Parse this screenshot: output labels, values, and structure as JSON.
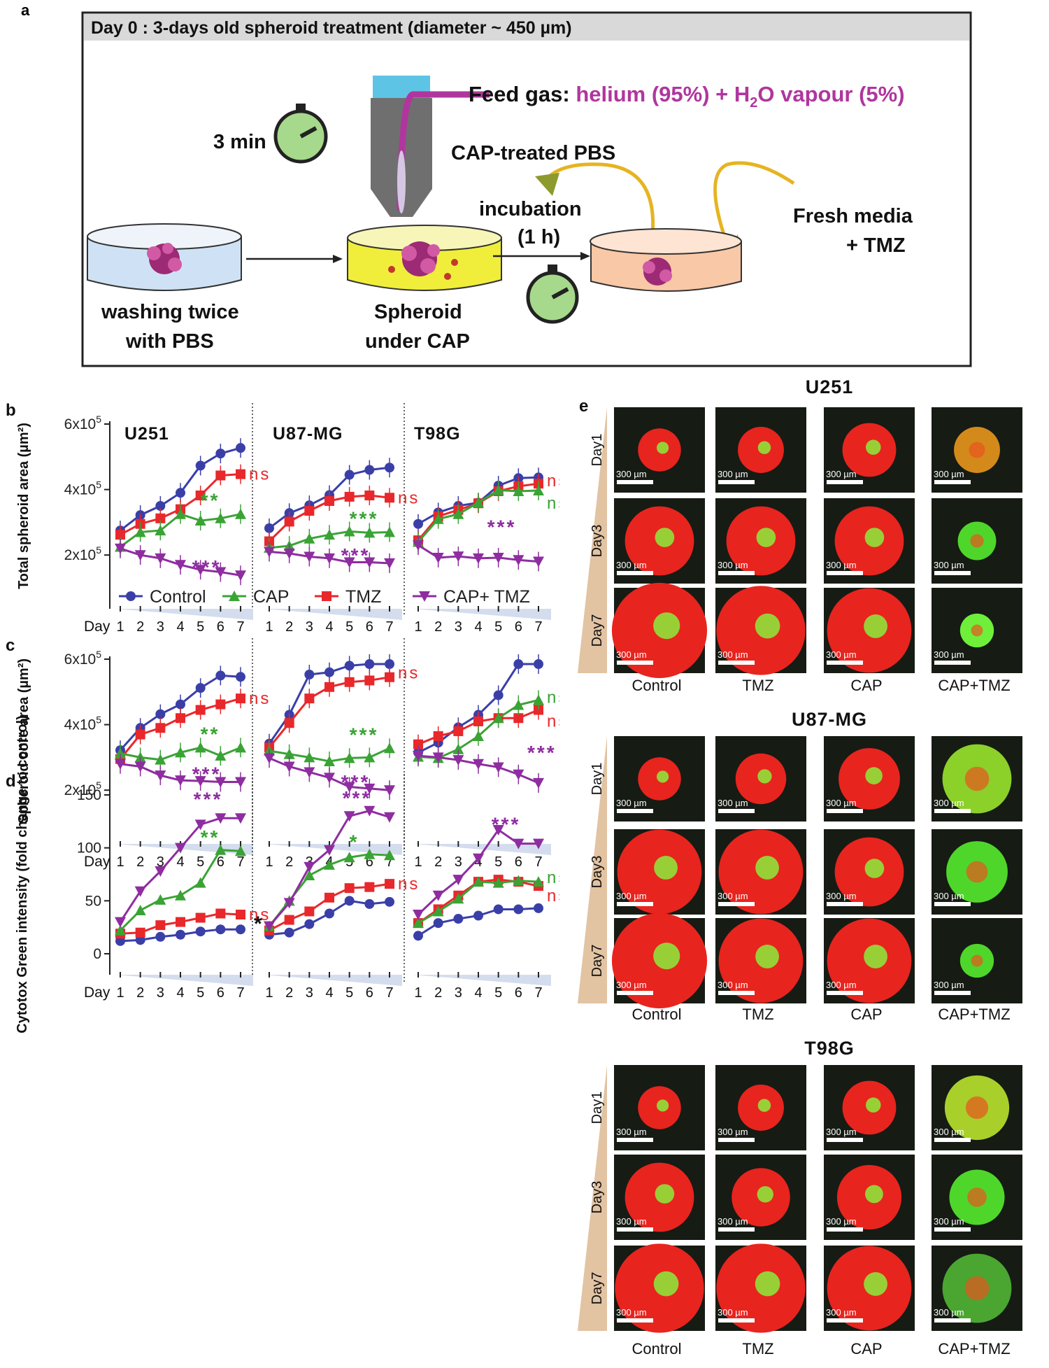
{
  "panel_a": {
    "letter": "a",
    "header": "Day 0 : 3-days old spheroid treatment (diameter ~ 450 µm)",
    "feed_gas_label": "Feed gas: ",
    "feed_gas_mix": "helium (95%) + H",
    "feed_gas_sub": "2",
    "feed_gas_tail": "O vapour (5%)",
    "timer_3min": "3 min",
    "cap_treated_pbs": "CAP-treated PBS",
    "incubation": "incubation",
    "incubation_time": "(1 h)",
    "fresh_media": "Fresh media",
    "plus_tmz": "+ TMZ",
    "washing_1": "washing twice",
    "washing_2": "with PBS",
    "spheroid_1": "Spheroid",
    "spheroid_2": "under CAP",
    "colors": {
      "gas": "#b0369e",
      "dish_wash": "#cfe2f5",
      "dish_cap": "#f0ee3a",
      "dish_inc": "#f9c8a6",
      "arrow": "#e6b422",
      "timer": "#a6d98c"
    }
  },
  "legend": {
    "items": [
      {
        "label": "Control",
        "color": "#3a3fa8",
        "marker": "circle"
      },
      {
        "label": "CAP",
        "color": "#3aa335",
        "marker": "triangle-up"
      },
      {
        "label": "TMZ",
        "color": "#e8282b",
        "marker": "square"
      },
      {
        "label": "CAP+ TMZ",
        "color": "#8e2da0",
        "marker": "triangle-down"
      }
    ]
  },
  "chart_data": [
    {
      "panel": "b",
      "type": "line",
      "ylabel": "Total spheroid area (µm²)",
      "ylim": [
        100000,
        600000
      ],
      "yticks": [
        "2x10⁵",
        "4x10⁵",
        "6x10⁵"
      ],
      "x": [
        1,
        2,
        3,
        4,
        5,
        6,
        7
      ],
      "xlabel": "Day",
      "subplots": [
        {
          "title": "U251",
          "series": [
            {
              "name": "Control",
              "values": [
                275000,
                322000,
                350000,
                390000,
                473000,
                510000,
                527000
              ]
            },
            {
              "name": "TMZ",
              "values": [
                262000,
                295000,
                312000,
                340000,
                382000,
                443000,
                447000
              ]
            },
            {
              "name": "CAP",
              "values": [
                225000,
                270000,
                275000,
                325000,
                305000,
                312000,
                325000
              ]
            },
            {
              "name": "CAP+ TMZ",
              "values": [
                220000,
                200000,
                190000,
                170000,
                155000,
                148000,
                138000
              ]
            }
          ],
          "annotations": [
            {
              "text": "ns",
              "series": "TMZ"
            },
            {
              "text": "**",
              "series": "CAP"
            },
            {
              "text": "***",
              "series": "CAP+ TMZ"
            }
          ]
        },
        {
          "title": "U87-MG",
          "series": [
            {
              "name": "Control",
              "values": [
                282000,
                328000,
                352000,
                383000,
                445000,
                460000,
                467000
              ]
            },
            {
              "name": "TMZ",
              "values": [
                242000,
                302000,
                335000,
                365000,
                378000,
                382000,
                375000
              ]
            },
            {
              "name": "CAP",
              "values": [
                222000,
                228000,
                250000,
                262000,
                272000,
                268000,
                270000
              ]
            },
            {
              "name": "CAP+ TMZ",
              "values": [
                210000,
                205000,
                195000,
                190000,
                178000,
                178000,
                175000
              ]
            }
          ],
          "annotations": [
            {
              "text": "ns",
              "series": "TMZ"
            },
            {
              "text": "***",
              "series": "CAP"
            },
            {
              "text": "***",
              "series": "CAP+ TMZ"
            }
          ]
        },
        {
          "title": "T98G",
          "series": [
            {
              "name": "Control",
              "values": [
                295000,
                330000,
                350000,
                360000,
                412000,
                435000,
                437000
              ]
            },
            {
              "name": "TMZ",
              "values": [
                245000,
                318000,
                338000,
                358000,
                395000,
                410000,
                418000
              ]
            },
            {
              "name": "CAP",
              "values": [
                240000,
                310000,
                325000,
                360000,
                398000,
                395000,
                397000
              ]
            },
            {
              "name": "CAP+ TMZ",
              "values": [
                230000,
                192000,
                196000,
                190000,
                192000,
                185000,
                180000
              ]
            }
          ],
          "annotations": [
            {
              "text": "ns",
              "series": "TMZ"
            },
            {
              "text": "ns",
              "series": "CAP"
            },
            {
              "text": "***",
              "series": "CAP+ TMZ"
            }
          ]
        }
      ]
    },
    {
      "panel": "c",
      "type": "line",
      "ylabel": "Spheroid core area (µm²)",
      "ylim": [
        100000,
        600000
      ],
      "yticks": [
        "2x10⁵",
        "4x10⁵",
        "6x10⁵"
      ],
      "x": [
        1,
        2,
        3,
        4,
        5,
        6,
        7
      ],
      "xlabel": "Day",
      "subplots": [
        {
          "title": "",
          "series": [
            {
              "name": "Control",
              "values": [
                322000,
                390000,
                432000,
                462000,
                512000,
                550000,
                546000
              ]
            },
            {
              "name": "TMZ",
              "values": [
                295000,
                370000,
                390000,
                420000,
                445000,
                462000,
                480000
              ]
            },
            {
              "name": "CAP",
              "values": [
                312000,
                300000,
                293000,
                315000,
                330000,
                305000,
                330000
              ]
            },
            {
              "name": "CAP+ TMZ",
              "values": [
                280000,
                272000,
                245000,
                230000,
                228000,
                225000,
                225000
              ]
            }
          ],
          "annotations": [
            {
              "text": "ns",
              "series": "TMZ"
            },
            {
              "text": "**",
              "series": "CAP"
            },
            {
              "text": "***",
              "series": "CAP+ TMZ"
            }
          ]
        },
        {
          "title": "",
          "series": [
            {
              "name": "Control",
              "values": [
                342000,
                430000,
                553000,
                560000,
                580000,
                585000,
                585000
              ]
            },
            {
              "name": "TMZ",
              "values": [
                330000,
                405000,
                480000,
                515000,
                530000,
                535000,
                545000
              ]
            },
            {
              "name": "CAP",
              "values": [
                320000,
                310000,
                300000,
                288000,
                298000,
                300000,
                328000
              ]
            },
            {
              "name": "CAP+ TMZ",
              "values": [
                298000,
                272000,
                255000,
                238000,
                210000,
                205000,
                200000
              ]
            }
          ],
          "annotations": [
            {
              "text": "ns",
              "series": "TMZ"
            },
            {
              "text": "***",
              "series": "CAP"
            },
            {
              "text": "***",
              "series": "CAP+ TMZ"
            }
          ]
        },
        {
          "title": "",
          "series": [
            {
              "name": "Control",
              "values": [
                315000,
                345000,
                392000,
                430000,
                490000,
                585000,
                585000
              ]
            },
            {
              "name": "TMZ",
              "values": [
                340000,
                365000,
                380000,
                410000,
                420000,
                420000,
                445000
              ]
            },
            {
              "name": "CAP",
              "values": [
                302000,
                298000,
                325000,
                365000,
                420000,
                460000,
                475000
              ]
            },
            {
              "name": "CAP+ TMZ",
              "values": [
                305000,
                300000,
                292000,
                280000,
                270000,
                248000,
                222000
              ]
            }
          ],
          "annotations": [
            {
              "text": "ns",
              "series": "CAP"
            },
            {
              "text": "ns",
              "series": "TMZ"
            },
            {
              "text": "***",
              "series": "CAP+ TMZ"
            }
          ]
        }
      ]
    },
    {
      "panel": "d",
      "type": "line",
      "ylabel": "Cytotox Green intensity (fold change to control)",
      "ylim": [
        0,
        150
      ],
      "yticks": [
        "0",
        "50",
        "100",
        "150"
      ],
      "x": [
        1,
        2,
        3,
        4,
        5,
        6,
        7
      ],
      "xlabel": "Day",
      "subplots": [
        {
          "title": "",
          "series": [
            {
              "name": "Control",
              "values": [
                12,
                13,
                16,
                18,
                21,
                23,
                23
              ]
            },
            {
              "name": "TMZ",
              "values": [
                19,
                20,
                27,
                30,
                34,
                38,
                37
              ]
            },
            {
              "name": "CAP",
              "values": [
                22,
                41,
                51,
                55,
                67,
                98,
                97
              ]
            },
            {
              "name": "CAP+ TMZ",
              "values": [
                30,
                59,
                78,
                100,
                122,
                128,
                128
              ]
            }
          ],
          "annotations": [
            {
              "text": "ns",
              "series": "TMZ"
            },
            {
              "text": "**",
              "series": "CAP"
            },
            {
              "text": "***",
              "series": "CAP+ TMZ"
            }
          ]
        },
        {
          "title": "",
          "series": [
            {
              "name": "Control",
              "values": [
                18,
                20,
                28,
                38,
                50,
                47,
                49
              ]
            },
            {
              "name": "TMZ",
              "values": [
                22,
                32,
                40,
                53,
                62,
                63,
                66
              ]
            },
            {
              "name": "CAP",
              "values": [
                26,
                50,
                74,
                84,
                91,
                94,
                93
              ]
            },
            {
              "name": "CAP+ TMZ",
              "values": [
                26,
                48,
                82,
                98,
                130,
                135,
                129
              ]
            }
          ],
          "annotations": [
            {
              "text": "ns",
              "series": "TMZ"
            },
            {
              "text": "*",
              "series": "CAP"
            },
            {
              "text": "***",
              "series": "CAP+ TMZ"
            },
            {
              "text": "*",
              "series": "left"
            }
          ]
        },
        {
          "title": "",
          "series": [
            {
              "name": "Control",
              "values": [
                17,
                29,
                33,
                36,
                42,
                42,
                43
              ]
            },
            {
              "name": "TMZ",
              "values": [
                29,
                42,
                55,
                68,
                70,
                68,
                64
              ]
            },
            {
              "name": "CAP",
              "values": [
                29,
                40,
                52,
                68,
                67,
                69,
                68
              ]
            },
            {
              "name": "CAP+ TMZ",
              "values": [
                37,
                55,
                70,
                90,
                117,
                104,
                104
              ]
            }
          ],
          "annotations": [
            {
              "text": "ns",
              "series": "CAP"
            },
            {
              "text": "ns",
              "series": "TMZ"
            },
            {
              "text": "***",
              "series": "CAP+ TMZ"
            }
          ]
        }
      ]
    }
  ],
  "panel_e": {
    "letter": "e",
    "scale_label": "300 µm",
    "groups": [
      {
        "title": "U251",
        "rows": [
          "Day1",
          "Day3",
          "Day7"
        ],
        "cols": [
          "Control",
          "TMZ",
          "CAP",
          "CAP+TMZ"
        ]
      },
      {
        "title": "U87-MG",
        "rows": [
          "Day1",
          "Day3",
          "Day7"
        ],
        "cols": [
          "Control",
          "TMZ",
          "CAP",
          "CAP+TMZ"
        ]
      },
      {
        "title": "T98G",
        "rows": [
          "Day1",
          "Day3",
          "Day7"
        ],
        "cols": [
          "Control",
          "TMZ",
          "CAP",
          "CAP+TMZ"
        ]
      }
    ]
  },
  "day_label": "Day",
  "day_ticks": [
    "1",
    "2",
    "3",
    "4",
    "5",
    "6",
    "7"
  ]
}
